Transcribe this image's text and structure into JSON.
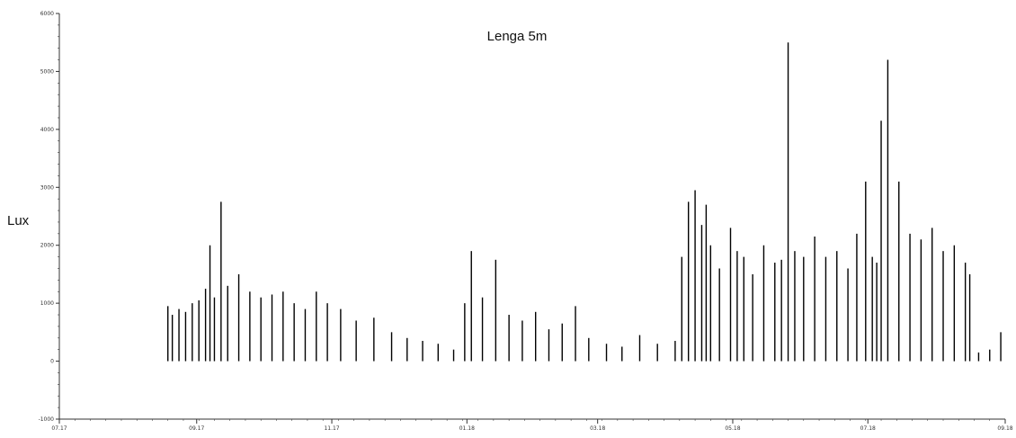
{
  "chart_data": {
    "type": "bar",
    "title": "Lenga 5m",
    "xlabel": "",
    "ylabel": "Lux",
    "ylim": [
      -1000,
      6000
    ],
    "yticks": [
      -1000,
      0,
      1000,
      2000,
      3000,
      4000,
      5000,
      6000
    ],
    "ytick_labels": [
      "-1000",
      "0",
      "1000",
      "2000",
      "3000",
      "4000",
      "5000",
      "6000"
    ],
    "xlim": [
      "2017-07-01",
      "2018-09-01"
    ],
    "xticks": [
      "2017-07-01",
      "2017-09-01",
      "2017-11-01",
      "2018-01-01",
      "2018-03-01",
      "2018-05-01",
      "2018-07-01",
      "2018-09-01"
    ],
    "xtick_labels": [
      "07.17",
      "09.17",
      "11.17",
      "01.18",
      "03.18",
      "05.18",
      "07.18",
      "09.18"
    ],
    "grid": false,
    "colors": {
      "bars": "#000000",
      "axis": "#333333"
    },
    "series": [
      {
        "x": [
          "2017-08-19",
          "2017-08-21",
          "2017-08-24",
          "2017-08-27",
          "2017-08-30",
          "2017-09-02",
          "2017-09-05",
          "2017-09-07",
          "2017-09-09",
          "2017-09-12",
          "2017-09-15",
          "2017-09-20",
          "2017-09-25",
          "2017-09-30",
          "2017-10-05",
          "2017-10-10",
          "2017-10-15",
          "2017-10-20",
          "2017-10-25",
          "2017-10-30",
          "2017-11-05",
          "2017-11-12",
          "2017-11-20",
          "2017-11-28",
          "2017-12-05",
          "2017-12-12",
          "2017-12-19",
          "2017-12-26",
          "2017-12-31",
          "2018-01-03",
          "2018-01-08",
          "2018-01-14",
          "2018-01-20",
          "2018-01-26",
          "2018-02-01",
          "2018-02-07",
          "2018-02-13",
          "2018-02-19",
          "2018-02-25",
          "2018-03-05",
          "2018-03-12",
          "2018-03-20",
          "2018-03-28",
          "2018-04-05",
          "2018-04-08",
          "2018-04-11",
          "2018-04-14",
          "2018-04-17",
          "2018-04-19",
          "2018-04-21",
          "2018-04-25",
          "2018-04-30",
          "2018-05-03",
          "2018-05-06",
          "2018-05-10",
          "2018-05-15",
          "2018-05-20",
          "2018-05-23",
          "2018-05-26",
          "2018-05-29",
          "2018-06-02",
          "2018-06-07",
          "2018-06-12",
          "2018-06-17",
          "2018-06-22",
          "2018-06-26",
          "2018-06-30",
          "2018-07-03",
          "2018-07-05",
          "2018-07-07",
          "2018-07-10",
          "2018-07-15",
          "2018-07-20",
          "2018-07-25",
          "2018-07-30",
          "2018-08-04",
          "2018-08-09",
          "2018-08-14",
          "2018-08-16",
          "2018-08-20",
          "2018-08-25",
          "2018-08-30"
        ],
        "values": [
          950,
          800,
          900,
          850,
          1000,
          1050,
          1250,
          2000,
          1100,
          2750,
          1300,
          1500,
          1200,
          1100,
          1150,
          1200,
          1000,
          900,
          1200,
          1000,
          900,
          700,
          750,
          500,
          400,
          350,
          300,
          200,
          1000,
          1900,
          1100,
          1750,
          800,
          700,
          850,
          550,
          650,
          950,
          400,
          300,
          250,
          450,
          300,
          350,
          1800,
          2750,
          2950,
          2350,
          2700,
          2000,
          1600,
          2300,
          1900,
          1800,
          1500,
          2000,
          1700,
          1750,
          5500,
          1900,
          1800,
          2150,
          1800,
          1900,
          1600,
          2200,
          3100,
          1800,
          1700,
          4150,
          5200,
          3100,
          2200,
          2100,
          2300,
          1900,
          2000,
          1700,
          1500,
          150,
          200,
          500
        ]
      }
    ]
  }
}
